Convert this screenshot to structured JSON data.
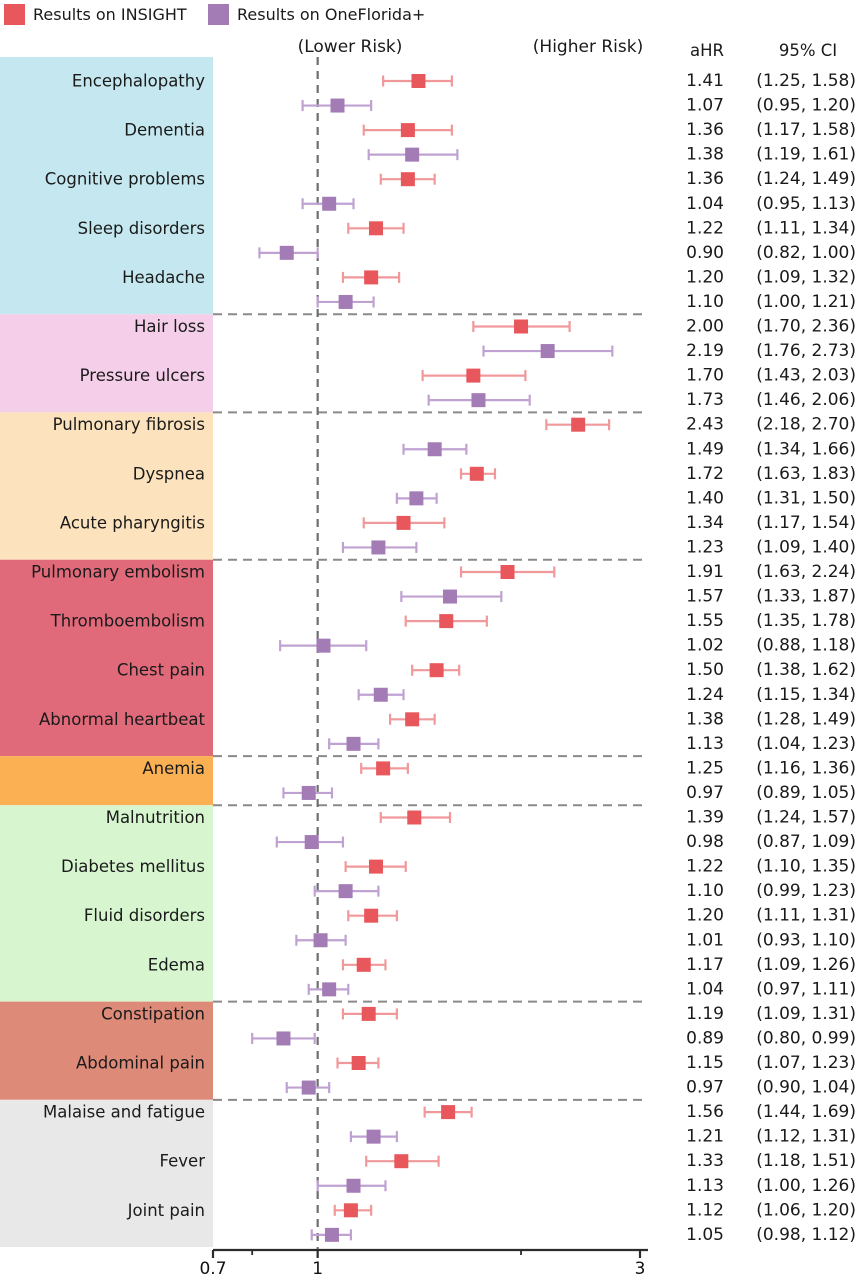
{
  "legend": [
    {
      "label": "Results on INSIGHT",
      "color": "#e8575c"
    },
    {
      "label": "Results on OneFlorida+",
      "color": "#a47cb5"
    }
  ],
  "annotations": {
    "lower_risk": "(Lower Risk)",
    "higher_risk": "(Higher Risk)"
  },
  "columns": {
    "ahr": "aHR",
    "ci": "95% CI"
  },
  "chart_data": {
    "type": "forest",
    "x_scale": "log",
    "xlim": [
      0.7,
      3
    ],
    "x_major_ticks": [
      0.7,
      1,
      3
    ],
    "x_major_tick_labels": [
      "0.7",
      "1",
      "3"
    ],
    "x_minor_ticks": [
      0.8,
      2
    ],
    "reference_line": 1,
    "legend_position": "top-left",
    "grid": false,
    "series": [
      {
        "name": "Results on INSIGHT",
        "marker_color": "#e8575c",
        "whisker_color": "#f0989a"
      },
      {
        "name": "Results on OneFlorida+",
        "marker_color": "#a47cb5",
        "whisker_color": "#bfa2d2"
      }
    ],
    "categories": [
      {
        "band_color": "#c5e8f0",
        "conditions": [
          {
            "name": "Encephalopathy",
            "estimates": [
              [
                "1.41",
                "1.25",
                "1.58"
              ],
              [
                "1.07",
                "0.95",
                "1.20"
              ]
            ]
          },
          {
            "name": "Dementia",
            "estimates": [
              [
                "1.36",
                "1.17",
                "1.58"
              ],
              [
                "1.38",
                "1.19",
                "1.61"
              ]
            ]
          },
          {
            "name": "Cognitive problems",
            "estimates": [
              [
                "1.36",
                "1.24",
                "1.49"
              ],
              [
                "1.04",
                "0.95",
                "1.13"
              ]
            ]
          },
          {
            "name": "Sleep disorders",
            "estimates": [
              [
                "1.22",
                "1.11",
                "1.34"
              ],
              [
                "0.90",
                "0.82",
                "1.00"
              ]
            ]
          },
          {
            "name": "Headache",
            "estimates": [
              [
                "1.20",
                "1.09",
                "1.32"
              ],
              [
                "1.10",
                "1.00",
                "1.21"
              ]
            ]
          }
        ]
      },
      {
        "band_color": "#f5cfe9",
        "conditions": [
          {
            "name": "Hair loss",
            "estimates": [
              [
                "2.00",
                "1.70",
                "2.36"
              ],
              [
                "2.19",
                "1.76",
                "2.73"
              ]
            ]
          },
          {
            "name": "Pressure ulcers",
            "estimates": [
              [
                "1.70",
                "1.43",
                "2.03"
              ],
              [
                "1.73",
                "1.46",
                "2.06"
              ]
            ]
          }
        ]
      },
      {
        "band_color": "#fce3bd",
        "conditions": [
          {
            "name": "Pulmonary fibrosis",
            "estimates": [
              [
                "2.43",
                "2.18",
                "2.70"
              ],
              [
                "1.49",
                "1.34",
                "1.66"
              ]
            ]
          },
          {
            "name": "Dyspnea",
            "estimates": [
              [
                "1.72",
                "1.63",
                "1.83"
              ],
              [
                "1.40",
                "1.31",
                "1.50"
              ]
            ]
          },
          {
            "name": "Acute pharyngitis",
            "estimates": [
              [
                "1.34",
                "1.17",
                "1.54"
              ],
              [
                "1.23",
                "1.09",
                "1.40"
              ]
            ]
          }
        ]
      },
      {
        "band_color": "#e0697a",
        "conditions": [
          {
            "name": "Pulmonary embolism",
            "estimates": [
              [
                "1.91",
                "1.63",
                "2.24"
              ],
              [
                "1.57",
                "1.33",
                "1.87"
              ]
            ]
          },
          {
            "name": "Thromboembolism",
            "estimates": [
              [
                "1.55",
                "1.35",
                "1.78"
              ],
              [
                "1.02",
                "0.88",
                "1.18"
              ]
            ]
          },
          {
            "name": "Chest pain",
            "estimates": [
              [
                "1.50",
                "1.38",
                "1.62"
              ],
              [
                "1.24",
                "1.15",
                "1.34"
              ]
            ]
          },
          {
            "name": "Abnormal heartbeat",
            "estimates": [
              [
                "1.38",
                "1.28",
                "1.49"
              ],
              [
                "1.13",
                "1.04",
                "1.23"
              ]
            ]
          }
        ]
      },
      {
        "band_color": "#fbb054",
        "conditions": [
          {
            "name": "Anemia",
            "estimates": [
              [
                "1.25",
                "1.16",
                "1.36"
              ],
              [
                "0.97",
                "0.89",
                "1.05"
              ]
            ]
          }
        ]
      },
      {
        "band_color": "#d7f6cf",
        "conditions": [
          {
            "name": "Malnutrition",
            "estimates": [
              [
                "1.39",
                "1.24",
                "1.57"
              ],
              [
                "0.98",
                "0.87",
                "1.09"
              ]
            ]
          },
          {
            "name": "Diabetes mellitus",
            "estimates": [
              [
                "1.22",
                "1.10",
                "1.35"
              ],
              [
                "1.10",
                "0.99",
                "1.23"
              ]
            ]
          },
          {
            "name": "Fluid disorders",
            "estimates": [
              [
                "1.20",
                "1.11",
                "1.31"
              ],
              [
                "1.01",
                "0.93",
                "1.10"
              ]
            ]
          },
          {
            "name": "Edema",
            "estimates": [
              [
                "1.17",
                "1.09",
                "1.26"
              ],
              [
                "1.04",
                "0.97",
                "1.11"
              ]
            ]
          }
        ]
      },
      {
        "band_color": "#dd8a78",
        "conditions": [
          {
            "name": "Constipation",
            "estimates": [
              [
                "1.19",
                "1.09",
                "1.31"
              ],
              [
                "0.89",
                "0.80",
                "0.99"
              ]
            ]
          },
          {
            "name": "Abdominal pain",
            "estimates": [
              [
                "1.15",
                "1.07",
                "1.23"
              ],
              [
                "0.97",
                "0.90",
                "1.04"
              ]
            ]
          }
        ]
      },
      {
        "band_color": "#e8e8e8",
        "conditions": [
          {
            "name": "Malaise and fatigue",
            "estimates": [
              [
                "1.56",
                "1.44",
                "1.69"
              ],
              [
                "1.21",
                "1.12",
                "1.31"
              ]
            ]
          },
          {
            "name": "Fever",
            "estimates": [
              [
                "1.33",
                "1.18",
                "1.51"
              ],
              [
                "1.13",
                "1.00",
                "1.26"
              ]
            ]
          },
          {
            "name": "Joint pain",
            "estimates": [
              [
                "1.12",
                "1.06",
                "1.20"
              ],
              [
                "1.05",
                "0.98",
                "1.12"
              ]
            ]
          }
        ]
      }
    ]
  }
}
